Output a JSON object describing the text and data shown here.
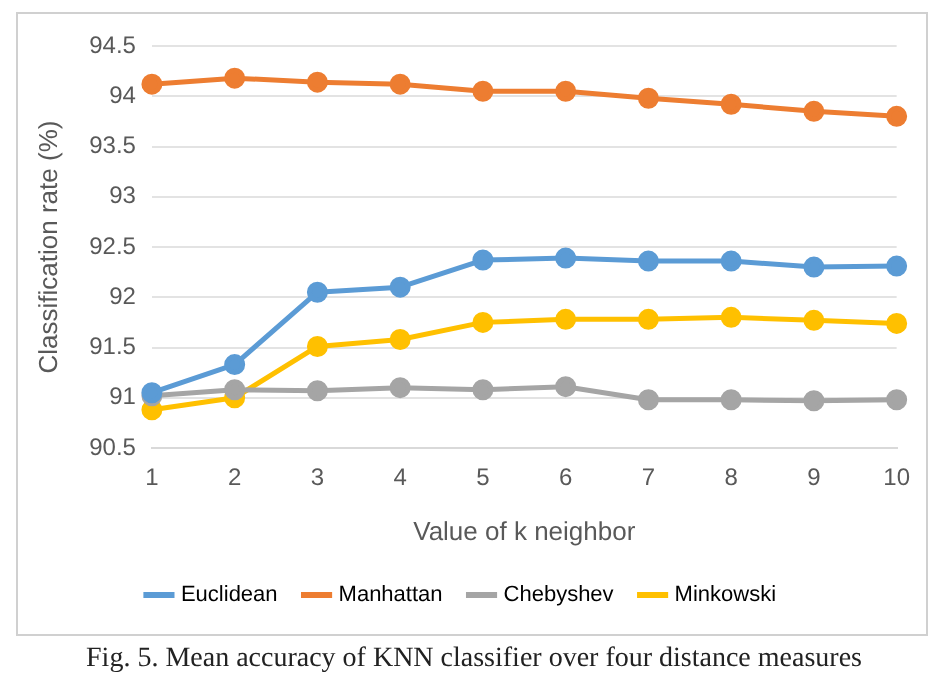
{
  "chart_data": {
    "type": "line",
    "xlabel": "Value of k neighbor",
    "ylabel": "Classification rate (%)",
    "categories": [
      "1",
      "2",
      "3",
      "4",
      "5",
      "6",
      "7",
      "8",
      "9",
      "10"
    ],
    "series": [
      {
        "name": "Euclidean",
        "color": "#5b9bd5",
        "values": [
          91.05,
          91.33,
          92.05,
          92.1,
          92.37,
          92.39,
          92.36,
          92.36,
          92.3,
          92.31
        ]
      },
      {
        "name": "Manhattan",
        "color": "#ed7d31",
        "values": [
          94.12,
          94.18,
          94.14,
          94.12,
          94.05,
          94.05,
          93.98,
          93.92,
          93.85,
          93.8
        ]
      },
      {
        "name": "Chebyshev",
        "color": "#a5a5a5",
        "values": [
          91.02,
          91.08,
          91.07,
          91.1,
          91.08,
          91.11,
          90.98,
          90.98,
          90.97,
          90.98
        ]
      },
      {
        "name": "Minkowski",
        "color": "#ffc000",
        "values": [
          90.88,
          91.0,
          91.51,
          91.58,
          91.75,
          91.78,
          91.78,
          91.8,
          91.77,
          91.74
        ]
      }
    ],
    "ylim": [
      90.5,
      94.5
    ],
    "yticks": [
      90.5,
      91,
      91.5,
      92,
      92.5,
      93,
      93.5,
      94,
      94.5
    ],
    "grid": "y",
    "legend": "bottom",
    "marker": "circle",
    "line_style": "solid",
    "annotations": [
      "Fig. 5.  Mean accuracy of KNN classifier over four distance measures"
    ]
  }
}
